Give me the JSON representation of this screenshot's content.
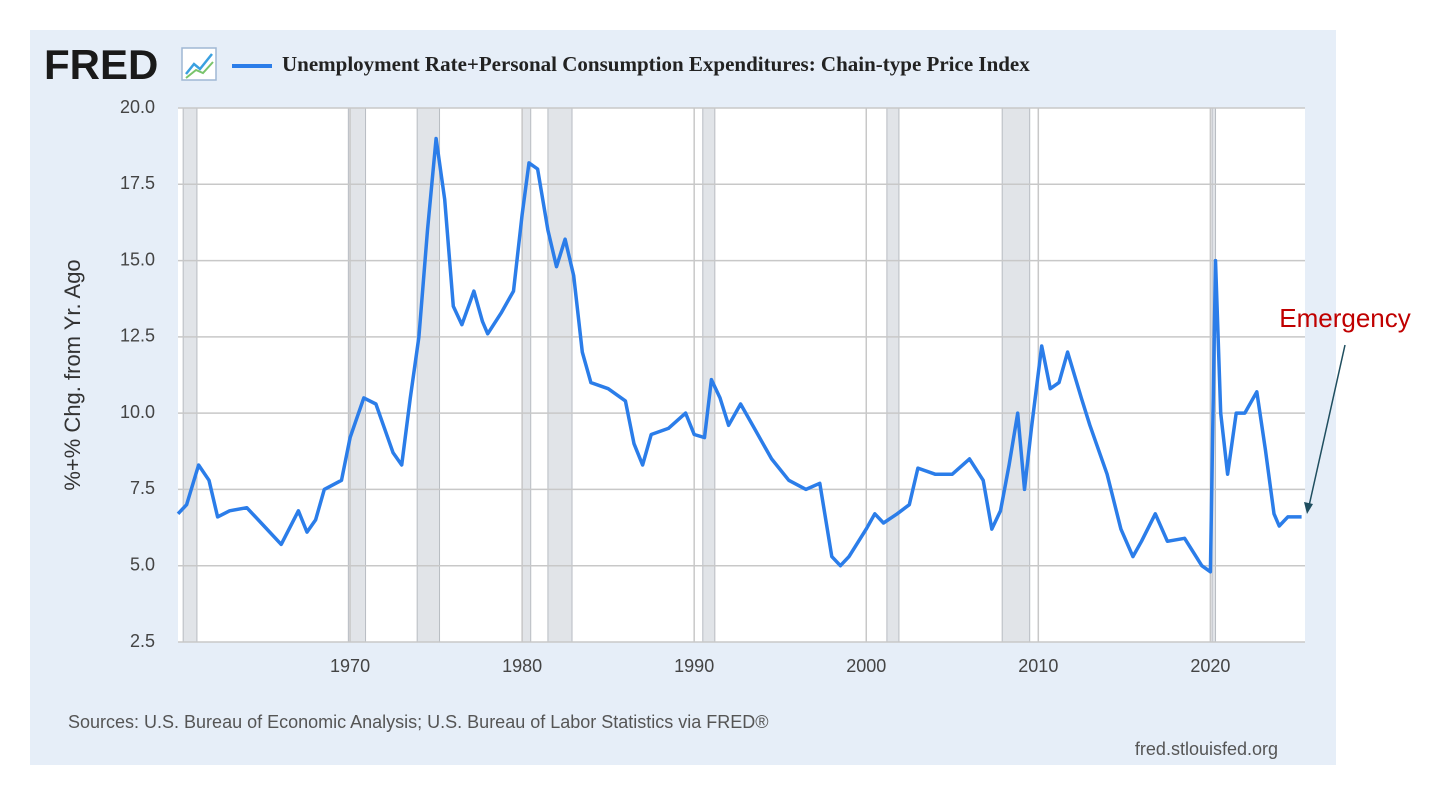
{
  "chart_data": {
    "type": "line",
    "logo": "FRED",
    "title": "Unemployment Rate+Personal Consumption Expenditures: Chain-type Price Index",
    "y_label": "%+% Chg. from Yr. Ago",
    "source": "Sources: U.S. Bureau of Economic Analysis; U.S. Bureau of Labor Statistics via FRED®",
    "site": "fred.stlouisfed.org",
    "annotation": "Emergency",
    "xlim": [
      1960,
      2025.5
    ],
    "xticks": [
      1970,
      1980,
      1990,
      2000,
      2010,
      2020
    ],
    "ylim": [
      2.5,
      20
    ],
    "yticks": [
      {
        "value": 2.5,
        "label": "2.5"
      },
      {
        "value": 5,
        "label": "5.0"
      },
      {
        "value": 7.5,
        "label": "7.5"
      },
      {
        "value": 10,
        "label": "10.0"
      },
      {
        "value": 12.5,
        "label": "12.5"
      },
      {
        "value": 15,
        "label": "15.0"
      },
      {
        "value": 17.5,
        "label": "17.5"
      },
      {
        "value": 20,
        "label": "20.0"
      }
    ],
    "grid": true,
    "recession_color": "#e1e4e8",
    "recessions": [
      [
        1960.3,
        1961.1
      ],
      [
        1969.9,
        1970.9
      ],
      [
        1973.9,
        1975.2
      ],
      [
        1980.0,
        1980.5
      ],
      [
        1981.5,
        1982.9
      ],
      [
        1990.5,
        1991.2
      ],
      [
        2001.2,
        2001.9
      ],
      [
        2007.9,
        2009.5
      ],
      [
        2020.1,
        2020.3
      ]
    ],
    "series": [
      {
        "name": "Unemployment Rate+Personal Consumption Expenditures: Chain-type Price Index",
        "color": "#2b7de9",
        "x": [
          1960.0,
          1960.5,
          1961.2,
          1961.8,
          1962.3,
          1963,
          1964,
          1965,
          1966,
          1967,
          1967.5,
          1968,
          1968.5,
          1969.5,
          1970,
          1970.8,
          1971.5,
          1972.5,
          1973,
          1973.5,
          1974,
          1974.5,
          1975.0,
          1975.5,
          1976,
          1976.5,
          1977.2,
          1977.7,
          1978,
          1978.8,
          1979.5,
          1980.0,
          1980.4,
          1980.9,
          1981.5,
          1982,
          1982.5,
          1983,
          1983.5,
          1984,
          1985,
          1986,
          1986.5,
          1987,
          1987.5,
          1988.5,
          1989.5,
          1990,
          1990.6,
          1991.0,
          1991.5,
          1992,
          1992.7,
          1993.5,
          1994.5,
          1995.5,
          1996.5,
          1997.3,
          1998,
          1998.5,
          1999,
          2000,
          2000.5,
          2001,
          2001.8,
          2002.5,
          2003,
          2004,
          2005,
          2006,
          2006.8,
          2007.3,
          2007.8,
          2008.3,
          2008.8,
          2009.2,
          2009.6,
          2010.2,
          2010.7,
          2011.2,
          2011.7,
          2012.5,
          2013,
          2014,
          2014.8,
          2015.5,
          2016,
          2016.8,
          2017.5,
          2018.5,
          2019.5,
          2020.0,
          2020.3,
          2020.6,
          2021.0,
          2021.5,
          2022.0,
          2022.7,
          2023.2,
          2023.7,
          2024.0,
          2024.5,
          2025.3
        ],
        "values": [
          6.7,
          7.0,
          8.3,
          7.8,
          6.6,
          6.8,
          6.9,
          6.3,
          5.7,
          6.8,
          6.1,
          6.5,
          7.5,
          7.8,
          9.2,
          10.5,
          10.3,
          8.7,
          8.3,
          10.5,
          12.5,
          16,
          19.0,
          17,
          13.5,
          12.9,
          14.0,
          13.0,
          12.6,
          13.3,
          14.0,
          16.5,
          18.2,
          18.0,
          16,
          14.8,
          15.7,
          14.5,
          12,
          11,
          10.8,
          10.4,
          9.0,
          8.3,
          9.3,
          9.5,
          10.0,
          9.3,
          9.2,
          11.1,
          10.5,
          9.6,
          10.3,
          9.5,
          8.5,
          7.8,
          7.5,
          7.7,
          5.3,
          5.0,
          5.3,
          6.2,
          6.7,
          6.4,
          6.7,
          7.0,
          8.2,
          8.0,
          8.0,
          8.5,
          7.8,
          6.2,
          6.8,
          8.3,
          10.0,
          7.5,
          9.5,
          12.2,
          10.8,
          11.0,
          12.0,
          10.5,
          9.6,
          8.0,
          6.2,
          5.3,
          5.8,
          6.7,
          5.8,
          5.9,
          5.0,
          4.8,
          15.0,
          10.0,
          8.0,
          10.0,
          10.0,
          10.7,
          8.8,
          6.7,
          6.3,
          6.6,
          6.6
        ]
      }
    ]
  }
}
